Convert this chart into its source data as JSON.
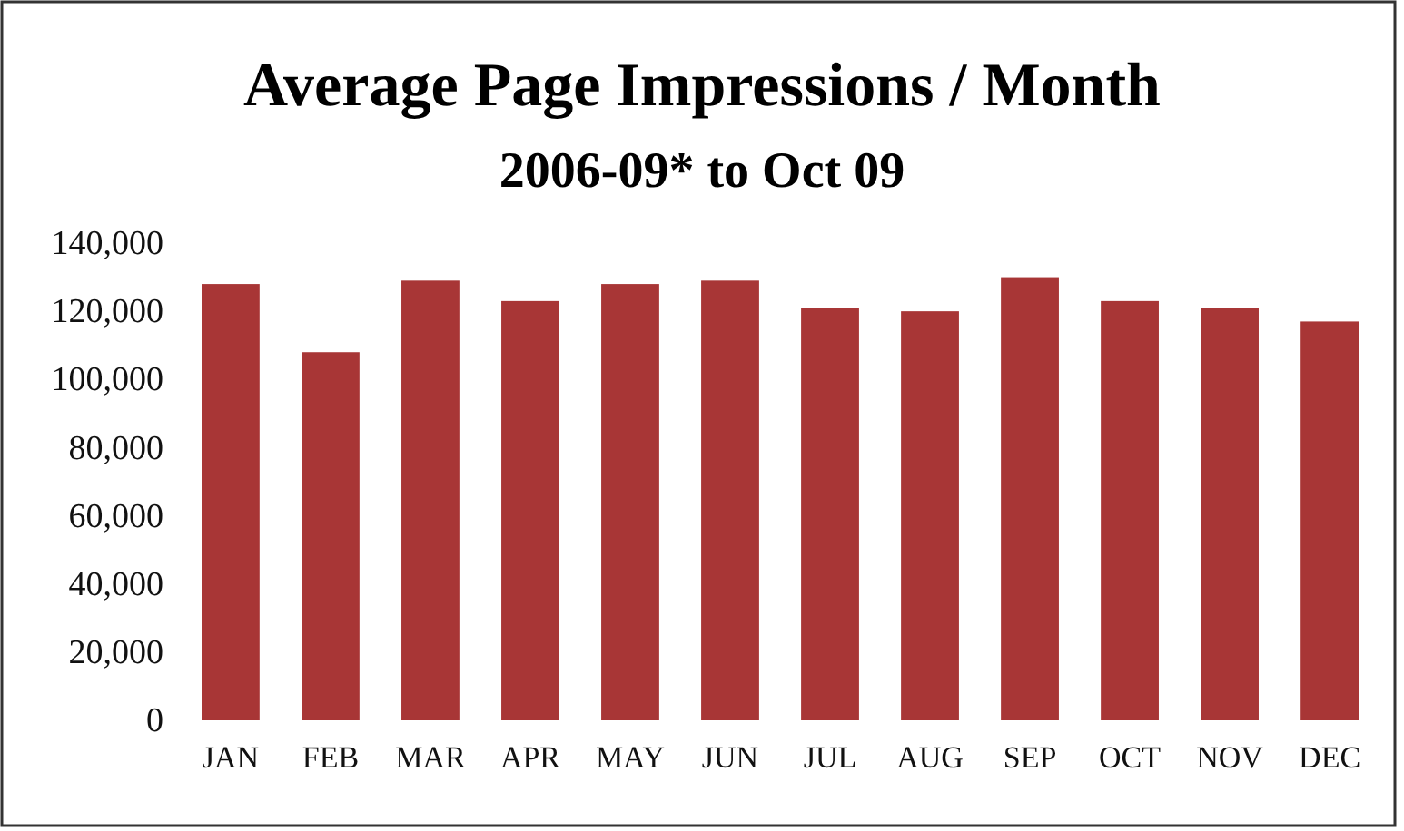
{
  "chart_data": {
    "type": "bar",
    "title": "Average Page Impressions / Month",
    "subtitle": "2006-09* to Oct 09",
    "categories": [
      "JAN",
      "FEB",
      "MAR",
      "APR",
      "MAY",
      "JUN",
      "JUL",
      "AUG",
      "SEP",
      "OCT",
      "NOV",
      "DEC"
    ],
    "values": [
      128000,
      108000,
      129000,
      123000,
      128000,
      129000,
      121000,
      120000,
      130000,
      123000,
      121000,
      117000
    ],
    "color": "#a83636",
    "ylim": [
      0,
      140000
    ],
    "yticks": [
      {
        "value": 0,
        "label": "0"
      },
      {
        "value": 20000,
        "label": "20,000"
      },
      {
        "value": 40000,
        "label": "40,000"
      },
      {
        "value": 60000,
        "label": "60,000"
      },
      {
        "value": 80000,
        "label": "80,000"
      },
      {
        "value": 100000,
        "label": "100,000"
      },
      {
        "value": 120000,
        "label": "120,000"
      },
      {
        "value": 140000,
        "label": "140,000"
      }
    ],
    "grid": false
  }
}
